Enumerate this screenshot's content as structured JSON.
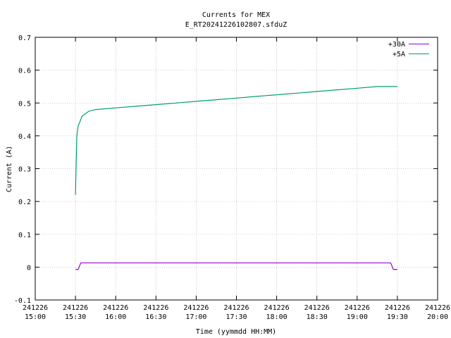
{
  "chart_data": {
    "type": "line",
    "title": "Currents for MEX",
    "subtitle": "E_RT20241226102807.sfduZ",
    "xlabel": "Time (yymmdd HH:MM)",
    "ylabel": "Current (A)",
    "ylim": [
      -0.1,
      0.7
    ],
    "xlim": [
      "15:00",
      "20:00"
    ],
    "grid": true,
    "legend_position": "top-right",
    "y_ticks": [
      "-0.1",
      "0",
      "0.1",
      "0.2",
      "0.3",
      "0.4",
      "0.5",
      "0.6",
      "0.7"
    ],
    "x_ticks": [
      {
        "date": "241226",
        "time": "15:00"
      },
      {
        "date": "241226",
        "time": "15:30"
      },
      {
        "date": "241226",
        "time": "16:00"
      },
      {
        "date": "241226",
        "time": "16:30"
      },
      {
        "date": "241226",
        "time": "17:00"
      },
      {
        "date": "241226",
        "time": "17:30"
      },
      {
        "date": "241226",
        "time": "18:00"
      },
      {
        "date": "241226",
        "time": "18:30"
      },
      {
        "date": "241226",
        "time": "19:00"
      },
      {
        "date": "241226",
        "time": "19:30"
      },
      {
        "date": "241226",
        "time": "20:00"
      }
    ],
    "series": [
      {
        "name": "+30A",
        "color": "#9400d3",
        "x": [
          "15:30",
          "15:32",
          "15:34",
          "15:40",
          "16:00",
          "16:30",
          "17:00",
          "17:30",
          "18:00",
          "18:30",
          "19:00",
          "19:20",
          "19:25",
          "19:27",
          "19:30"
        ],
        "y": [
          -0.007,
          -0.007,
          0.013,
          0.013,
          0.013,
          0.013,
          0.013,
          0.013,
          0.013,
          0.013,
          0.013,
          0.013,
          0.013,
          -0.007,
          -0.007
        ]
      },
      {
        "name": "+5A",
        "color": "#009e73",
        "x": [
          "15:30",
          "15:31",
          "15:32",
          "15:35",
          "15:40",
          "15:45",
          "16:00",
          "16:15",
          "16:30",
          "16:45",
          "17:00",
          "17:15",
          "17:30",
          "17:45",
          "18:00",
          "18:15",
          "18:30",
          "18:45",
          "19:00",
          "19:15",
          "19:30"
        ],
        "y": [
          0.22,
          0.4,
          0.43,
          0.46,
          0.475,
          0.48,
          0.485,
          0.49,
          0.495,
          0.5,
          0.505,
          0.51,
          0.515,
          0.52,
          0.525,
          0.53,
          0.535,
          0.54,
          0.545,
          0.55,
          0.55
        ]
      }
    ]
  }
}
